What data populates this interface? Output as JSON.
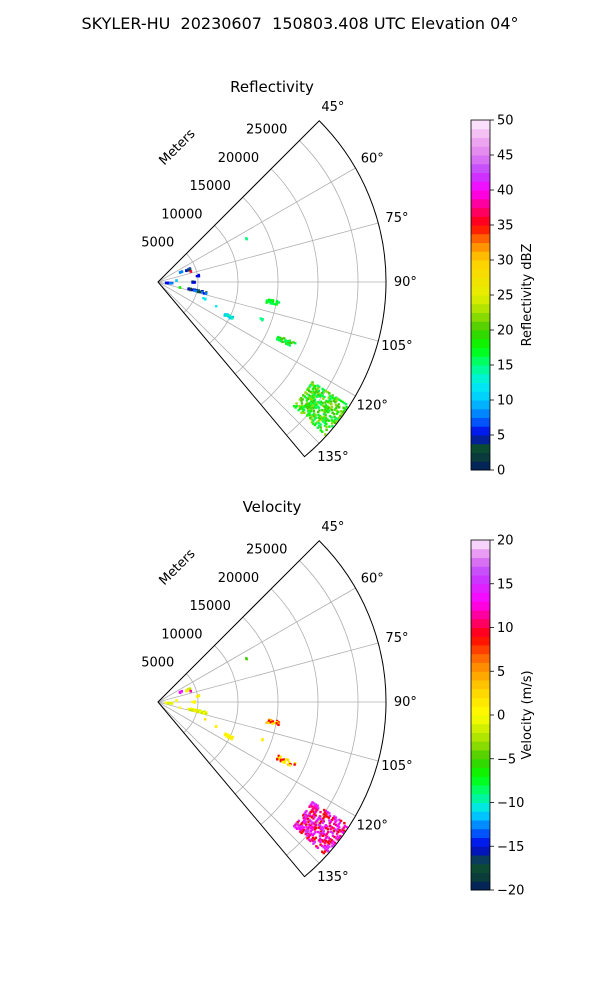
{
  "figure_title": "SKYLER-HU  20230607  150803.408 UTC Elevation 04°",
  "chart_data": [
    {
      "type": "heatmap",
      "projection": "polar-sector",
      "title": "Reflectivity",
      "range_label": "Meters",
      "range_ticks": [
        5000,
        10000,
        15000,
        20000,
        25000
      ],
      "range_tick_labels": [
        "5000",
        "10000",
        "15000",
        "20000",
        "25000"
      ],
      "range_max": 28500,
      "azimuth_range": [
        45,
        140
      ],
      "azimuth_ticks": [
        45,
        60,
        75,
        90,
        105,
        120,
        135
      ],
      "azimuth_tick_labels": [
        "45°",
        "60°",
        "75°",
        "90°",
        "105°",
        "120°",
        "135°"
      ],
      "grid": true,
      "colorbar": {
        "label": "Reflectivity dBZ",
        "min": 0,
        "max": 50,
        "ticks": [
          0,
          5,
          10,
          15,
          20,
          25,
          30,
          35,
          40,
          45,
          50
        ],
        "tick_labels": [
          "0",
          "5",
          "10",
          "15",
          "20",
          "25",
          "30",
          "35",
          "40",
          "45",
          "50"
        ],
        "stops": [
          {
            "v": 0,
            "c": "#001a66"
          },
          {
            "v": 2,
            "c": "#0a3d3a"
          },
          {
            "v": 3.5,
            "c": "#0d5030"
          },
          {
            "v": 5,
            "c": "#0000e6"
          },
          {
            "v": 7.5,
            "c": "#0070ff"
          },
          {
            "v": 10,
            "c": "#00c8ff"
          },
          {
            "v": 12.5,
            "c": "#00f0f0"
          },
          {
            "v": 15,
            "c": "#00ff80"
          },
          {
            "v": 17.5,
            "c": "#00ff00"
          },
          {
            "v": 20,
            "c": "#40cc00"
          },
          {
            "v": 22.5,
            "c": "#a0e000"
          },
          {
            "v": 25,
            "c": "#e6f000"
          },
          {
            "v": 30,
            "c": "#ffd000"
          },
          {
            "v": 32.5,
            "c": "#ff8000"
          },
          {
            "v": 35,
            "c": "#ff0000"
          },
          {
            "v": 37.5,
            "c": "#ff0080"
          },
          {
            "v": 40,
            "c": "#ff00ff"
          },
          {
            "v": 42.5,
            "c": "#c040ff"
          },
          {
            "v": 45,
            "c": "#e080f0"
          },
          {
            "v": 47.5,
            "c": "#f0b0f0"
          },
          {
            "v": 50,
            "c": "#fff0ff"
          }
        ]
      },
      "echoes": [
        {
          "az": 68,
          "r0": 3800,
          "r1": 4600,
          "w": 3,
          "v": [
            8,
            5,
            3
          ]
        },
        {
          "az": 72,
          "r0": 4300,
          "r1": 4600,
          "w": 2,
          "v": [
            36
          ]
        },
        {
          "az": 66,
          "r0": 3000,
          "r1": 3400,
          "w": 2,
          "v": [
            8
          ]
        },
        {
          "az": 81,
          "r0": 4900,
          "r1": 5300,
          "w": 2,
          "v": [
            5
          ]
        },
        {
          "az": 90,
          "r0": 4300,
          "r1": 4800,
          "w": 2,
          "v": [
            3,
            5
          ]
        },
        {
          "az": 103,
          "r0": 3900,
          "r1": 6300,
          "w": 3,
          "v": [
            5,
            8,
            3
          ]
        },
        {
          "az": 95,
          "r0": 1000,
          "r1": 2000,
          "w": 3,
          "v": [
            5,
            8
          ]
        },
        {
          "az": 104,
          "r0": 2800,
          "r1": 3100,
          "w": 1,
          "v": [
            18
          ]
        },
        {
          "az": 110,
          "r0": 6000,
          "r1": 6500,
          "w": 1,
          "v": [
            12
          ]
        },
        {
          "az": 113,
          "r0": 7600,
          "r1": 8000,
          "w": 1,
          "v": [
            12
          ]
        },
        {
          "az": 116,
          "r0": 9300,
          "r1": 10500,
          "w": 2,
          "v": [
            10,
            14
          ]
        },
        {
          "az": 85,
          "r0": 2300,
          "r1": 2600,
          "w": 1,
          "v": [
            10
          ]
        },
        {
          "az": 64,
          "r0": 12300,
          "r1": 12500,
          "w": 1,
          "v": [
            15
          ]
        },
        {
          "az": 100,
          "r0": 13800,
          "r1": 15500,
          "w": 2,
          "v": [
            16,
            18
          ]
        },
        {
          "az": 110,
          "r0": 13600,
          "r1": 14200,
          "w": 1,
          "v": [
            15
          ]
        },
        {
          "az": 115,
          "r0": 16500,
          "r1": 19000,
          "w": 2,
          "v": [
            16,
            18,
            20
          ]
        },
        {
          "az": 128,
          "r0": 23000,
          "r1": 28500,
          "w": 10,
          "v": [
            16,
            18,
            20,
            22
          ]
        }
      ]
    },
    {
      "type": "heatmap",
      "projection": "polar-sector",
      "title": "Velocity",
      "range_label": "Meters",
      "range_ticks": [
        5000,
        10000,
        15000,
        20000,
        25000
      ],
      "range_tick_labels": [
        "5000",
        "10000",
        "15000",
        "20000",
        "25000"
      ],
      "range_max": 28500,
      "azimuth_range": [
        45,
        140
      ],
      "azimuth_ticks": [
        45,
        60,
        75,
        90,
        105,
        120,
        135
      ],
      "azimuth_tick_labels": [
        "45°",
        "60°",
        "75°",
        "90°",
        "105°",
        "120°",
        "135°"
      ],
      "grid": true,
      "colorbar": {
        "label": "Velocity (m/s)",
        "min": -20,
        "max": 20,
        "ticks": [
          -20,
          -15,
          -10,
          -5,
          0,
          5,
          10,
          15,
          20
        ],
        "tick_labels": [
          "−20",
          "−15",
          "−10",
          "−5",
          "0",
          "5",
          "10",
          "15",
          "20"
        ],
        "stops": [
          {
            "v": -20,
            "c": "#001a66"
          },
          {
            "v": -18.5,
            "c": "#0a3d3a"
          },
          {
            "v": -17,
            "c": "#0d5030"
          },
          {
            "v": -15,
            "c": "#0000e6"
          },
          {
            "v": -13,
            "c": "#0070ff"
          },
          {
            "v": -11,
            "c": "#00e0ff"
          },
          {
            "v": -9,
            "c": "#00ff80"
          },
          {
            "v": -7,
            "c": "#00ff00"
          },
          {
            "v": -5,
            "c": "#40cc00"
          },
          {
            "v": -3,
            "c": "#a0e000"
          },
          {
            "v": 0,
            "c": "#ffff00"
          },
          {
            "v": 3,
            "c": "#ffd000"
          },
          {
            "v": 6,
            "c": "#ff8000"
          },
          {
            "v": 9,
            "c": "#ff0000"
          },
          {
            "v": 11,
            "c": "#ff0080"
          },
          {
            "v": 13,
            "c": "#ff00ff"
          },
          {
            "v": 16,
            "c": "#c040ff"
          },
          {
            "v": 18,
            "c": "#e080f0"
          },
          {
            "v": 20,
            "c": "#fff0ff"
          }
        ]
      },
      "echoes": [
        {
          "az": 68,
          "r0": 3800,
          "r1": 4600,
          "w": 3,
          "v": [
            0,
            -2,
            1
          ]
        },
        {
          "az": 72,
          "r0": 4300,
          "r1": 4600,
          "w": 2,
          "v": [
            12
          ]
        },
        {
          "az": 66,
          "r0": 3000,
          "r1": 3400,
          "w": 2,
          "v": [
            14
          ]
        },
        {
          "az": 81,
          "r0": 4900,
          "r1": 5300,
          "w": 2,
          "v": [
            1
          ]
        },
        {
          "az": 90,
          "r0": 4300,
          "r1": 4800,
          "w": 2,
          "v": [
            0,
            1
          ]
        },
        {
          "az": 103,
          "r0": 3900,
          "r1": 6300,
          "w": 3,
          "v": [
            0,
            -2,
            1
          ]
        },
        {
          "az": 95,
          "r0": 1000,
          "r1": 2000,
          "w": 3,
          "v": [
            0,
            -1
          ]
        },
        {
          "az": 104,
          "r0": 2800,
          "r1": 3100,
          "w": 1,
          "v": [
            0
          ]
        },
        {
          "az": 110,
          "r0": 6000,
          "r1": 6500,
          "w": 1,
          "v": [
            2
          ]
        },
        {
          "az": 113,
          "r0": 7600,
          "r1": 8000,
          "w": 1,
          "v": [
            1
          ]
        },
        {
          "az": 116,
          "r0": 9300,
          "r1": 10500,
          "w": 2,
          "v": [
            0,
            1
          ]
        },
        {
          "az": 85,
          "r0": 2300,
          "r1": 2600,
          "w": 1,
          "v": [
            0
          ]
        },
        {
          "az": 64,
          "r0": 12300,
          "r1": 12500,
          "w": 1,
          "v": [
            -5
          ]
        },
        {
          "az": 100,
          "r0": 13800,
          "r1": 15500,
          "w": 2,
          "v": [
            9,
            4,
            1
          ]
        },
        {
          "az": 110,
          "r0": 13600,
          "r1": 14200,
          "w": 1,
          "v": [
            1
          ]
        },
        {
          "az": 115,
          "r0": 16500,
          "r1": 19000,
          "w": 2,
          "v": [
            9,
            1,
            3
          ]
        },
        {
          "az": 128,
          "r0": 23000,
          "r1": 28500,
          "w": 10,
          "v": [
            9,
            11,
            13,
            15
          ]
        }
      ]
    }
  ]
}
